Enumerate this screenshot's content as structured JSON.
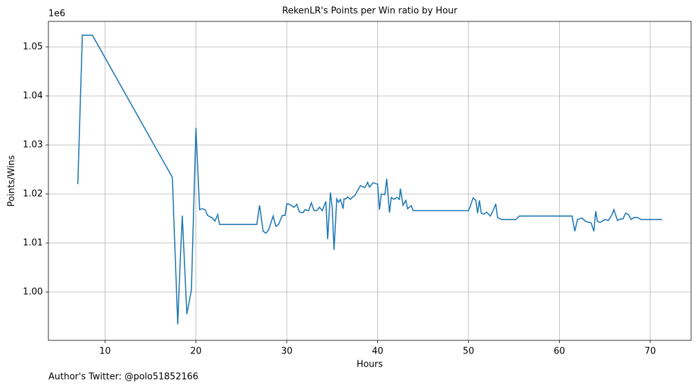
{
  "chart_data": {
    "type": "line",
    "title": "RekenLR's Points per Win ratio by Hour",
    "x_label": "Hours",
    "y_label": "Points/Wins",
    "y_offset_label": "1e6",
    "footnote": "Author's Twitter: @polo51852166",
    "x": [
      7.0,
      7.5,
      8.6,
      17.4,
      18.0,
      18.2,
      18.5,
      19.0,
      19.5,
      20.0,
      20.4,
      20.7,
      21.0,
      21.3,
      21.8,
      22.1,
      22.4,
      22.6,
      26.7,
      27.0,
      27.4,
      27.7,
      28.0,
      28.5,
      28.8,
      29.1,
      29.5,
      29.8,
      30.0,
      30.3,
      30.8,
      31.1,
      31.4,
      31.8,
      32.0,
      32.4,
      32.7,
      33.0,
      33.3,
      33.6,
      33.9,
      34.3,
      34.5,
      34.8,
      35.0,
      35.2,
      35.5,
      35.7,
      35.9,
      36.2,
      36.3,
      36.5,
      36.7,
      37.0,
      37.2,
      37.5,
      37.8,
      38.1,
      38.6,
      38.9,
      39.1,
      39.5,
      40.0,
      40.2,
      40.4,
      40.8,
      41.0,
      41.3,
      41.5,
      41.8,
      42.1,
      42.4,
      42.5,
      42.8,
      43.1,
      43.3,
      43.7,
      43.9,
      50.0,
      50.2,
      50.5,
      50.8,
      51.0,
      51.2,
      51.4,
      51.7,
      52.0,
      52.4,
      52.8,
      53.0,
      53.2,
      53.6,
      55.2,
      55.6,
      61.4,
      61.7,
      62.0,
      62.5,
      62.9,
      63.5,
      63.8,
      64.0,
      64.2,
      64.5,
      65.0,
      65.4,
      65.8,
      66.0,
      66.4,
      66.7,
      67.0,
      67.3,
      67.6,
      67.9,
      68.2,
      68.6,
      69.0,
      71.3
    ],
    "series": [
      {
        "name": "Points/Wins",
        "color": "#1f77b4",
        "values": [
          1022000,
          1052400,
          1052400,
          1023400,
          993400,
          1003200,
          1015600,
          995500,
          1000400,
          1033500,
          1016800,
          1017000,
          1016800,
          1015600,
          1015100,
          1014500,
          1015800,
          1013800,
          1013800,
          1017700,
          1012400,
          1012000,
          1012700,
          1015500,
          1013400,
          1013800,
          1015600,
          1015600,
          1018000,
          1017900,
          1017300,
          1017900,
          1016300,
          1016200,
          1016800,
          1016600,
          1018200,
          1016600,
          1016600,
          1017300,
          1016600,
          1018500,
          1010800,
          1020300,
          1017200,
          1008600,
          1019000,
          1018300,
          1018900,
          1017000,
          1019000,
          1019000,
          1019400,
          1018900,
          1019300,
          1019700,
          1020700,
          1021700,
          1021300,
          1022400,
          1021400,
          1022300,
          1022000,
          1016800,
          1020000,
          1019900,
          1023100,
          1016200,
          1019300,
          1018900,
          1019300,
          1018900,
          1021100,
          1017700,
          1018700,
          1017000,
          1017600,
          1016600,
          1016600,
          1017500,
          1019200,
          1018700,
          1016100,
          1018700,
          1016100,
          1015900,
          1016300,
          1015500,
          1017000,
          1018000,
          1015200,
          1014800,
          1014800,
          1015500,
          1015500,
          1012400,
          1014800,
          1015100,
          1014400,
          1014100,
          1012400,
          1016500,
          1014400,
          1014200,
          1014800,
          1014600,
          1015800,
          1016800,
          1014600,
          1014900,
          1014900,
          1016100,
          1015800,
          1014800,
          1015200,
          1015200,
          1014800,
          1014800
        ]
      }
    ],
    "xlim": [
      3.76,
      74.5
    ],
    "ylim": [
      990140,
      1055210
    ],
    "xticks": [
      10,
      20,
      30,
      40,
      50,
      60,
      70
    ],
    "yticks": [
      {
        "value": 1000000,
        "label": "1.00"
      },
      {
        "value": 1010000,
        "label": "1.01"
      },
      {
        "value": 1020000,
        "label": "1.02"
      },
      {
        "value": 1030000,
        "label": "1.03"
      },
      {
        "value": 1040000,
        "label": "1.04"
      },
      {
        "value": 1050000,
        "label": "1.05"
      }
    ],
    "grid": true
  }
}
